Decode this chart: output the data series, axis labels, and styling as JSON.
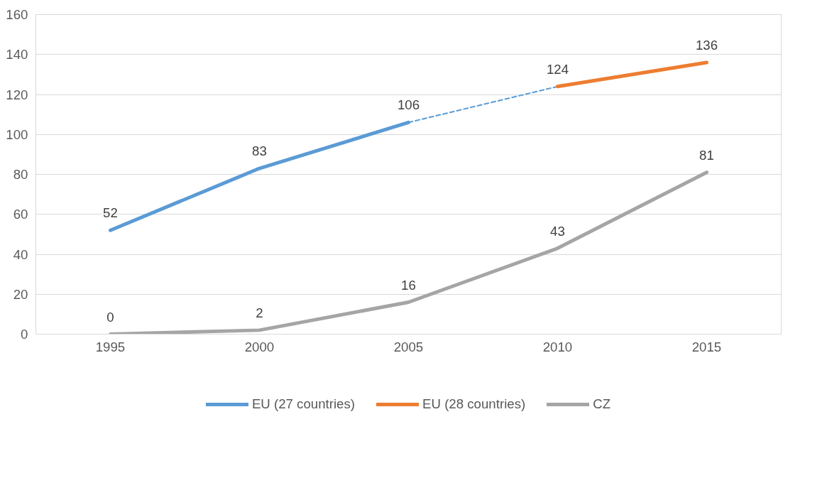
{
  "chart_data": {
    "type": "line",
    "categories": [
      "1995",
      "2000",
      "2005",
      "2010",
      "2015"
    ],
    "series": [
      {
        "name": "EU (27 countries)",
        "color": "#5b9bd5",
        "values": [
          52,
          83,
          106,
          null,
          null
        ],
        "value_labels": [
          "52",
          "83",
          "106",
          null,
          null
        ]
      },
      {
        "color": "#5b9bd5",
        "values": [
          null,
          null,
          106,
          124,
          null
        ],
        "line_style": "dashed",
        "value_labels": [
          null,
          null,
          null,
          null,
          null
        ]
      },
      {
        "name": "EU (28 countries)",
        "color": "#ed7d31",
        "values": [
          null,
          null,
          null,
          124,
          136
        ],
        "value_labels": [
          null,
          null,
          null,
          "124",
          "136"
        ]
      },
      {
        "name": "CZ",
        "color": "#a5a5a5",
        "values": [
          0,
          2,
          16,
          43,
          81
        ],
        "value_labels": [
          "0",
          "2",
          "16",
          "43",
          "81"
        ]
      }
    ],
    "ylim": [
      0,
      160
    ],
    "yticks": [
      0,
      20,
      40,
      60,
      80,
      100,
      120,
      140,
      160
    ],
    "grid": "y",
    "legend": "bottom",
    "line_style": "solid",
    "marker": "none"
  }
}
